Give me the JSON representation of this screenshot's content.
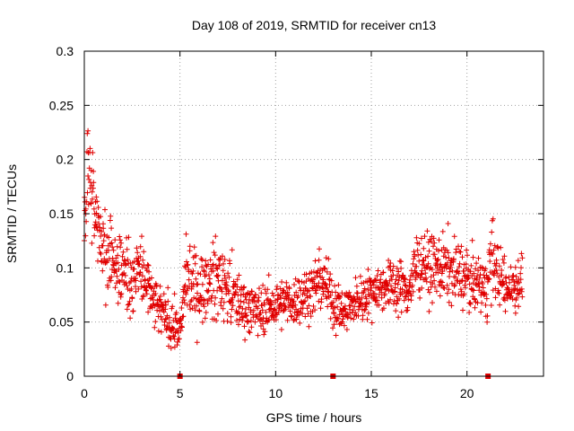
{
  "chart_data": {
    "type": "scatter",
    "title": "Day 108 of 2019, SRMTID for receiver cn13",
    "xlabel": "GPS time / hours",
    "ylabel": "SRMTID / TECUs",
    "xlim": [
      0,
      24
    ],
    "ylim": [
      0,
      0.3
    ],
    "x_ticks": [
      0,
      5,
      10,
      15,
      20
    ],
    "y_ticks": [
      0,
      0.05,
      0.1,
      0.15,
      0.2,
      0.25,
      0.3
    ],
    "y_tick_labels": [
      "0",
      "0.05",
      "0.1",
      "0.15",
      "0.2",
      "0.25",
      "0.3"
    ],
    "grid": true,
    "marker": "plus",
    "color": "#e00000",
    "x_axis_markers": [
      5.0,
      13.0,
      21.1
    ],
    "data_range_hours": [
      0,
      22.9
    ],
    "series": [
      {
        "name": "SRMTID",
        "profile_x": [
          0,
          0.2,
          0.5,
          1.0,
          1.5,
          2.0,
          2.5,
          3.0,
          3.5,
          4.0,
          4.5,
          5.0,
          5.3,
          6.0,
          7.0,
          8.0,
          9.0,
          10.0,
          11.0,
          12.0,
          12.5,
          13.0,
          13.5,
          14.0,
          15.0,
          16.0,
          17.0,
          17.5,
          18.0,
          19.0,
          20.0,
          21.0,
          21.3,
          22.0,
          22.9
        ],
        "profile_median": [
          0.13,
          0.19,
          0.15,
          0.12,
          0.11,
          0.1,
          0.09,
          0.1,
          0.07,
          0.06,
          0.05,
          0.04,
          0.09,
          0.08,
          0.09,
          0.07,
          0.06,
          0.065,
          0.07,
          0.08,
          0.09,
          0.07,
          0.06,
          0.065,
          0.08,
          0.085,
          0.08,
          0.11,
          0.1,
          0.1,
          0.09,
          0.08,
          0.11,
          0.08,
          0.09
        ],
        "profile_spread": [
          0.04,
          0.06,
          0.05,
          0.05,
          0.04,
          0.04,
          0.04,
          0.04,
          0.03,
          0.025,
          0.025,
          0.02,
          0.04,
          0.035,
          0.04,
          0.03,
          0.025,
          0.025,
          0.025,
          0.03,
          0.03,
          0.03,
          0.025,
          0.02,
          0.025,
          0.025,
          0.03,
          0.035,
          0.03,
          0.035,
          0.03,
          0.03,
          0.04,
          0.025,
          0.03
        ],
        "point_count": 1500
      }
    ]
  }
}
